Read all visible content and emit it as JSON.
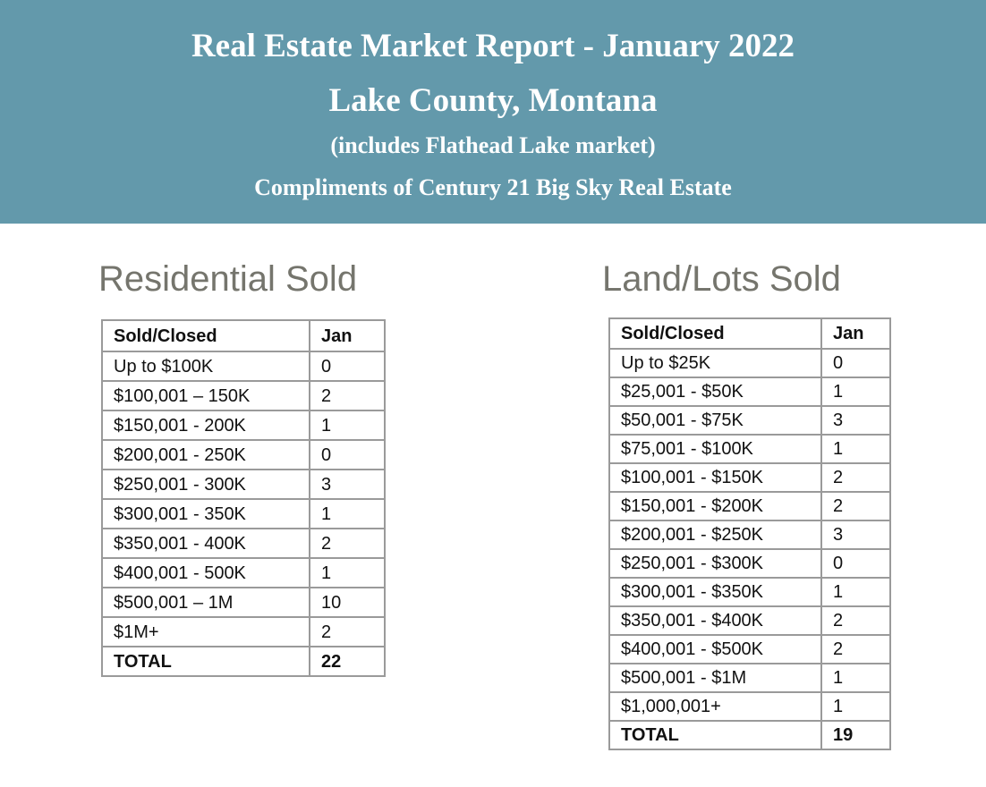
{
  "header": {
    "lines": [
      "Real Estate Market Report - January 2022",
      "Lake County, Montana",
      "(includes Flathead Lake market)",
      "Compliments of Century 21 Big Sky Real Estate"
    ]
  },
  "residential": {
    "title": "Residential Sold",
    "columns": [
      "Sold/Closed",
      "Jan"
    ],
    "rows": [
      [
        "Up to $100K",
        0
      ],
      [
        "$100,001 – 150K",
        2
      ],
      [
        "$150,001 - 200K",
        1
      ],
      [
        "$200,001 - 250K",
        0
      ],
      [
        "$250,001 - 300K",
        3
      ],
      [
        "$300,001 - 350K",
        1
      ],
      [
        "$350,001 - 400K",
        2
      ],
      [
        "$400,001 - 500K",
        1
      ],
      [
        "$500,001 – 1M",
        10
      ],
      [
        "$1M+",
        2
      ],
      [
        "TOTAL",
        22
      ]
    ]
  },
  "land": {
    "title": "Land/Lots Sold",
    "columns": [
      "Sold/Closed",
      "Jan"
    ],
    "rows": [
      [
        "Up to $25K",
        0
      ],
      [
        "$25,001 - $50K",
        1
      ],
      [
        "$50,001 - $75K",
        3
      ],
      [
        "$75,001 - $100K",
        1
      ],
      [
        "$100,001 - $150K",
        2
      ],
      [
        "$150,001 - $200K",
        2
      ],
      [
        "$200,001 - $250K",
        3
      ],
      [
        "$250,001 - $300K",
        0
      ],
      [
        "$300,001 - $350K",
        1
      ],
      [
        "$350,001 - $400K",
        2
      ],
      [
        "$400,001 - $500K",
        2
      ],
      [
        "$500,001 - $1M",
        1
      ],
      [
        "$1,000,001+",
        1
      ],
      [
        "TOTAL",
        19
      ]
    ]
  }
}
